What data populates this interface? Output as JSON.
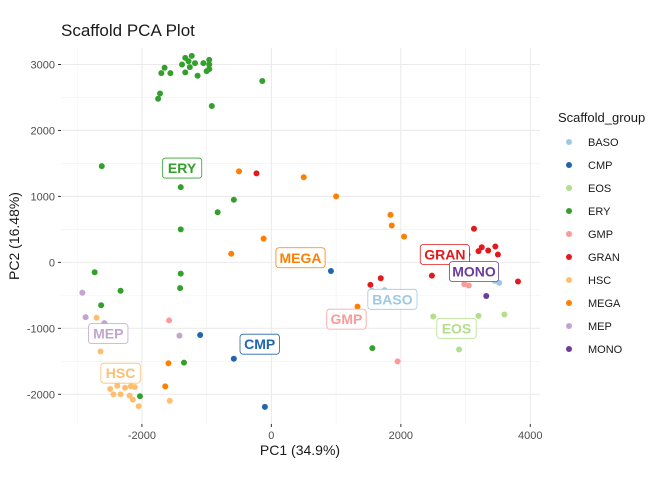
{
  "chart_data": {
    "type": "scatter",
    "title": "Scaffold PCA Plot",
    "xlabel": "PC1 (34.9%)",
    "ylabel": "PC2 (16.48%)",
    "xlim": [
      -3250,
      4150
    ],
    "ylim": [
      -2450,
      3250
    ],
    "xticks": [
      -2000,
      0,
      2000,
      4000
    ],
    "yticks": [
      -2000,
      -1000,
      0,
      1000,
      2000,
      3000
    ],
    "grid": true,
    "legend": {
      "title": "Scaffold_group",
      "position": "right"
    },
    "series": [
      {
        "name": "BASO",
        "color": "#9ECAE1",
        "points": [
          [
            1550,
            -430
          ],
          [
            1750,
            -420
          ],
          [
            1920,
            -650
          ],
          [
            2050,
            -560
          ],
          [
            3450,
            -280
          ],
          [
            3520,
            -310
          ]
        ],
        "label": {
          "text": "BASO",
          "x": 1870,
          "y": -560
        }
      },
      {
        "name": "CMP",
        "color": "#2166AC",
        "points": [
          [
            920,
            -130
          ],
          [
            -1100,
            -1100
          ],
          [
            -580,
            -1460
          ],
          [
            -100,
            -2190
          ]
        ],
        "label": {
          "text": "CMP",
          "x": -180,
          "y": -1240
        }
      },
      {
        "name": "EOS",
        "color": "#B2DF8A",
        "points": [
          [
            2500,
            -820
          ],
          [
            2900,
            -1320
          ],
          [
            3200,
            -810
          ],
          [
            3600,
            -790
          ]
        ],
        "label": {
          "text": "EOS",
          "x": 2860,
          "y": -1000
        }
      },
      {
        "name": "ERY",
        "color": "#33A02C",
        "points": [
          [
            -1750,
            2480
          ],
          [
            -1700,
            2870
          ],
          [
            -1720,
            2560
          ],
          [
            -1650,
            2950
          ],
          [
            -1560,
            2870
          ],
          [
            -1380,
            3000
          ],
          [
            -1330,
            3100
          ],
          [
            -1280,
            3050
          ],
          [
            -1260,
            2960
          ],
          [
            -1230,
            3130
          ],
          [
            -1180,
            3020
          ],
          [
            -1330,
            2880
          ],
          [
            -1140,
            2830
          ],
          [
            -1050,
            3020
          ],
          [
            -960,
            3000
          ],
          [
            -960,
            3070
          ],
          [
            -960,
            2930
          ],
          [
            -1000,
            2900
          ],
          [
            -920,
            2370
          ],
          [
            -140,
            2750
          ],
          [
            -2620,
            1460
          ],
          [
            -1400,
            1140
          ],
          [
            -830,
            760
          ],
          [
            -580,
            950
          ],
          [
            -1400,
            500
          ],
          [
            -2730,
            -150
          ],
          [
            -2330,
            -430
          ],
          [
            -1400,
            -170
          ],
          [
            -1410,
            -390
          ],
          [
            -2630,
            -650
          ],
          [
            -2610,
            -1030
          ],
          [
            -2300,
            -1080
          ],
          [
            -1350,
            -1520
          ],
          [
            -2030,
            -2030
          ],
          [
            1560,
            -1300
          ]
        ],
        "label": {
          "text": "ERY",
          "x": -1380,
          "y": 1430
        }
      },
      {
        "name": "GMP",
        "color": "#FB9A99",
        "points": [
          [
            -1580,
            -880
          ],
          [
            1950,
            -1500
          ],
          [
            2980,
            -330
          ],
          [
            3050,
            -350
          ]
        ],
        "label": {
          "text": "GMP",
          "x": 1160,
          "y": -860
        }
      },
      {
        "name": "GRAN",
        "color": "#E31A1C",
        "points": [
          [
            -230,
            1350
          ],
          [
            1530,
            -340
          ],
          [
            1690,
            -240
          ],
          [
            2480,
            -200
          ],
          [
            3130,
            510
          ],
          [
            3200,
            170
          ],
          [
            3250,
            230
          ],
          [
            3350,
            180
          ],
          [
            3460,
            240
          ],
          [
            3500,
            120
          ],
          [
            3810,
            -290
          ]
        ],
        "label": {
          "text": "GRAN",
          "x": 2680,
          "y": 120
        }
      },
      {
        "name": "HSC",
        "color": "#FDBF6F",
        "points": [
          [
            -2700,
            -840
          ],
          [
            -2640,
            -1350
          ],
          [
            -2540,
            -1790
          ],
          [
            -2490,
            -1920
          ],
          [
            -2440,
            -2000
          ],
          [
            -2380,
            -1870
          ],
          [
            -2330,
            -2000
          ],
          [
            -2260,
            -1900
          ],
          [
            -2190,
            -2020
          ],
          [
            -2170,
            -1880
          ],
          [
            -2140,
            -2080
          ],
          [
            -2110,
            -1890
          ],
          [
            -2050,
            -2180
          ],
          [
            -1570,
            -2100
          ]
        ],
        "label": {
          "text": "HSC",
          "x": -2330,
          "y": -1680
        }
      },
      {
        "name": "MEGA",
        "color": "#FF7F00",
        "points": [
          [
            -2660,
            -1080
          ],
          [
            -1590,
            -1530
          ],
          [
            -1640,
            -1880
          ],
          [
            -500,
            1380
          ],
          [
            500,
            1290
          ],
          [
            1000,
            1000
          ],
          [
            1840,
            720
          ],
          [
            1860,
            560
          ],
          [
            2050,
            390
          ],
          [
            1330,
            -670
          ],
          [
            -620,
            130
          ],
          [
            -120,
            360
          ]
        ],
        "label": {
          "text": "MEGA",
          "x": 450,
          "y": 70
        }
      },
      {
        "name": "MEP",
        "color": "#C2A5CF",
        "points": [
          [
            -2920,
            -460
          ],
          [
            -2870,
            -830
          ],
          [
            -2580,
            -920
          ],
          [
            -1420,
            -1110
          ]
        ],
        "label": {
          "text": "MEP",
          "x": -2520,
          "y": -1080
        }
      },
      {
        "name": "MONO",
        "color": "#6A3D9A",
        "points": [
          [
            2920,
            -40
          ],
          [
            3030,
            120
          ],
          [
            3200,
            -50
          ],
          [
            3320,
            -510
          ],
          [
            3350,
            -160
          ]
        ],
        "label": {
          "text": "MONO",
          "x": 3130,
          "y": -140
        }
      }
    ]
  }
}
